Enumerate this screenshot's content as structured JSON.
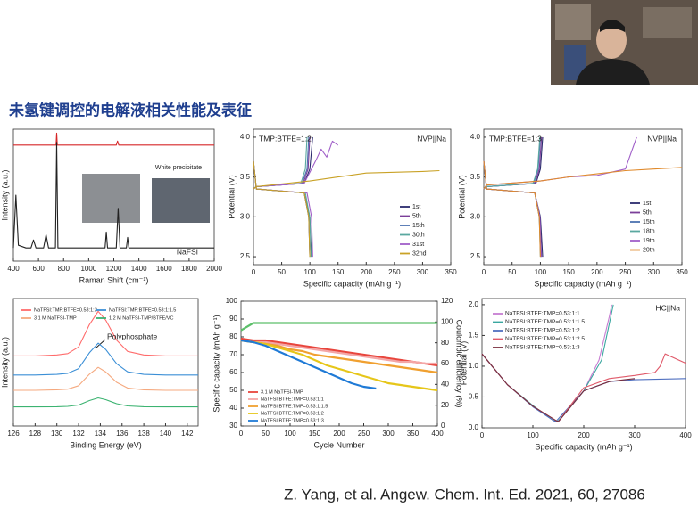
{
  "slide": {
    "title": "未氢键调控的电解液相关性能及表征",
    "citation": "Z. Yang, et al. Angew. Chem. Int. Ed. 2021, 60, 27086"
  },
  "chart_data": [
    {
      "type": "line",
      "xlabel": "Raman Shift (cm⁻¹)",
      "ylabel": "Intensity (a.u.)",
      "xlim": [
        400,
        2000
      ],
      "xticks": [
        400,
        600,
        800,
        1000,
        1200,
        1400,
        1600,
        1800,
        2000
      ],
      "ylim": [
        0,
        100
      ],
      "annotations": [
        "White precipitate",
        "NaFSI"
      ],
      "series": [
        {
          "color": "#d62728",
          "x": [
            400,
            700,
            740,
            745,
            750,
            800,
            1100,
            1220,
            1230,
            1240,
            1400,
            2000
          ],
          "values": [
            88,
            88,
            88,
            97,
            88,
            88,
            88,
            88,
            91,
            88,
            88,
            88
          ]
        },
        {
          "color": "#222222",
          "x": [
            400,
            420,
            440,
            500,
            540,
            560,
            580,
            640,
            660,
            680,
            720,
            735,
            745,
            755,
            800,
            1100,
            1130,
            1140,
            1150,
            1200,
            1220,
            1235,
            1250,
            1280,
            1300,
            1310,
            1320,
            1400,
            2000
          ],
          "values": [
            10,
            50,
            12,
            10,
            10,
            16,
            10,
            10,
            20,
            10,
            10,
            10,
            90,
            10,
            10,
            10,
            10,
            22,
            10,
            10,
            10,
            40,
            10,
            10,
            10,
            18,
            10,
            10,
            10
          ]
        }
      ]
    },
    {
      "type": "line",
      "xlabel": "Specific capacity (mAh g⁻¹)",
      "ylabel": "Potential (V)",
      "xlim": [
        0,
        350
      ],
      "xticks": [
        0,
        50,
        100,
        150,
        200,
        250,
        300,
        350
      ],
      "ylim": [
        2.4,
        4.1
      ],
      "yticks": [
        2.5,
        {
          "value": 3,
          "label": "3.0"
        },
        3.5,
        {
          "value": 4,
          "label": "4.0"
        }
      ],
      "annotations": [
        "TMP:BTFE=1:2",
        "NVP||Na"
      ],
      "series": [
        {
          "name": "1st",
          "color": "#2b2b6e",
          "x": [
            0,
            5,
            90,
            100,
            105,
            null,
            0,
            5,
            90,
            100,
            103
          ],
          "values": [
            3.35,
            3.38,
            3.42,
            3.6,
            4.0,
            null,
            3.7,
            3.35,
            3.3,
            3.0,
            2.5
          ]
        },
        {
          "name": "5th",
          "color": "#7b3f99",
          "x": [
            0,
            5,
            88,
            97,
            100,
            null,
            0,
            5,
            90,
            98,
            100
          ],
          "values": [
            3.35,
            3.38,
            3.42,
            3.6,
            4.0,
            null,
            3.7,
            3.35,
            3.3,
            3.0,
            2.5
          ]
        },
        {
          "name": "15th",
          "color": "#4c72b0",
          "x": [
            0,
            5,
            86,
            95,
            98,
            null,
            0,
            5,
            90,
            98,
            100
          ],
          "values": [
            3.35,
            3.38,
            3.42,
            3.6,
            4.0,
            null,
            3.7,
            3.35,
            3.3,
            3.0,
            2.5
          ]
        },
        {
          "name": "30th",
          "color": "#5aa8a0",
          "x": [
            0,
            5,
            84,
            92,
            95,
            null,
            0,
            5,
            92,
            100,
            102
          ],
          "values": [
            3.35,
            3.38,
            3.42,
            3.6,
            4.0,
            null,
            3.7,
            3.35,
            3.3,
            3.0,
            2.5
          ]
        },
        {
          "name": "31st",
          "color": "#a05fc8",
          "x": [
            0,
            5,
            90,
            110,
            120,
            130,
            140,
            150,
            null,
            0,
            5,
            95,
            103,
            105
          ],
          "values": [
            3.35,
            3.38,
            3.42,
            3.7,
            3.85,
            3.75,
            3.95,
            3.9,
            null,
            3.7,
            3.35,
            3.3,
            3.0,
            2.5
          ]
        },
        {
          "name": "32nd",
          "color": "#c9a227",
          "x": [
            0,
            5,
            100,
            150,
            200,
            250,
            300,
            330,
            null,
            0,
            5,
            90,
            98,
            100
          ],
          "values": [
            3.35,
            3.38,
            3.45,
            3.5,
            3.55,
            3.56,
            3.57,
            3.58,
            null,
            3.7,
            3.35,
            3.3,
            3.0,
            2.5
          ]
        }
      ]
    },
    {
      "type": "line",
      "xlabel": "Specific capacity (mAh g⁻¹)",
      "ylabel": "Potential (V)",
      "xlim": [
        0,
        350
      ],
      "xticks": [
        0,
        50,
        100,
        150,
        200,
        250,
        300,
        350
      ],
      "ylim": [
        2.4,
        4.1
      ],
      "yticks": [
        2.5,
        {
          "value": 3,
          "label": "3.0"
        },
        3.5,
        {
          "value": 4,
          "label": "4.0"
        }
      ],
      "annotations": [
        "TMP:BTFE=1:3",
        "NVP||Na"
      ],
      "series": [
        {
          "name": "1st",
          "color": "#2b2b6e",
          "x": [
            0,
            5,
            92,
            100,
            104,
            null,
            0,
            5,
            90,
            100,
            104
          ],
          "values": [
            3.35,
            3.38,
            3.42,
            3.6,
            4.0,
            null,
            3.7,
            3.35,
            3.3,
            3.0,
            2.5
          ]
        },
        {
          "name": "5th",
          "color": "#7b3f99",
          "x": [
            0,
            5,
            90,
            98,
            102,
            null,
            0,
            5,
            90,
            99,
            102
          ],
          "values": [
            3.35,
            3.38,
            3.42,
            3.6,
            4.0,
            null,
            3.7,
            3.35,
            3.3,
            3.0,
            2.5
          ]
        },
        {
          "name": "15th",
          "color": "#4c72b0",
          "x": [
            0,
            5,
            88,
            96,
            100,
            null,
            0,
            5,
            90,
            98,
            101
          ],
          "values": [
            3.35,
            3.38,
            3.42,
            3.6,
            4.0,
            null,
            3.7,
            3.35,
            3.3,
            3.0,
            2.5
          ]
        },
        {
          "name": "18th",
          "color": "#5aa8a0",
          "x": [
            0,
            5,
            87,
            95,
            99,
            null,
            0,
            5,
            90,
            98,
            100
          ],
          "values": [
            3.35,
            3.38,
            3.42,
            3.6,
            4.0,
            null,
            3.7,
            3.35,
            3.3,
            3.0,
            2.5
          ]
        },
        {
          "name": "19th",
          "color": "#a05fc8",
          "x": [
            0,
            5,
            100,
            150,
            200,
            250,
            260,
            270,
            null,
            0,
            5,
            90,
            99,
            101
          ],
          "values": [
            3.35,
            3.4,
            3.45,
            3.5,
            3.52,
            3.6,
            3.8,
            4.0,
            null,
            3.7,
            3.35,
            3.3,
            3.0,
            2.5
          ]
        },
        {
          "name": "20th",
          "color": "#e08a2c",
          "x": [
            0,
            5,
            100,
            150,
            200,
            250,
            300,
            350,
            null,
            0,
            5,
            90,
            98,
            100
          ],
          "values": [
            3.35,
            3.4,
            3.45,
            3.5,
            3.54,
            3.58,
            3.6,
            3.62,
            null,
            3.7,
            3.35,
            3.3,
            3.0,
            2.5
          ]
        }
      ]
    },
    {
      "type": "line",
      "xlabel": "Binding Energy (eV)",
      "ylabel": "Intensity (a.u.)",
      "xlim": [
        126,
        143
      ],
      "xticks": [
        126,
        128,
        130,
        132,
        134,
        136,
        138,
        140,
        142
      ],
      "ylim": [
        0,
        100
      ],
      "annotations": [
        "Polyphosphate"
      ],
      "x": [
        126,
        128,
        130,
        131,
        132,
        133,
        133.8,
        134.5,
        135.5,
        136.5,
        138,
        140,
        143
      ],
      "series": [
        {
          "name": "NaTFSI:TMP:BTFE=0.53:1:3",
          "color": "#ff6b6b",
          "values": [
            55,
            55,
            55.7,
            56.8,
            62,
            79.5,
            90,
            83,
            67.3,
            58.5,
            55.7,
            55,
            55
          ]
        },
        {
          "name": "NaTFSI:TMP:BTFE=0.53:1:1.5",
          "color": "#3b8fd6",
          "values": [
            40,
            40,
            40.5,
            41.3,
            45,
            57.5,
            65,
            60,
            48.8,
            42.5,
            40.5,
            40,
            40
          ]
        },
        {
          "name": "3.1 M NaTFSI-TMP",
          "color": "#f5a97f",
          "values": [
            28,
            28,
            28.4,
            28.9,
            31.6,
            40.6,
            46,
            42.4,
            34.3,
            29.8,
            28.4,
            28,
            28
          ]
        },
        {
          "name": "1.2 M NaTFSI-TMP/BTFE/VC",
          "color": "#3cb371",
          "values": [
            15,
            15,
            15.1,
            15.4,
            16.4,
            19.9,
            22,
            20.6,
            17.5,
            15.7,
            15.1,
            15,
            15
          ]
        }
      ]
    },
    {
      "type": "line",
      "xlabel": "Cycle Number",
      "ylabel": "Specific capacity (mAh g⁻¹)",
      "y2label": "Coulombic efficiency (%)",
      "xlim": [
        0,
        400
      ],
      "xticks": [
        0,
        50,
        100,
        150,
        200,
        250,
        300,
        350,
        400
      ],
      "ylim": [
        30,
        100
      ],
      "yticks": [
        30,
        40,
        50,
        60,
        70,
        80,
        90,
        100
      ],
      "y2lim": [
        0,
        120
      ],
      "y2ticks": [
        0,
        20,
        40,
        60,
        80,
        100,
        120
      ],
      "x": [
        0,
        25,
        50,
        75,
        100,
        125,
        150,
        175,
        200,
        225,
        250,
        275,
        300,
        325,
        350,
        375,
        400
      ],
      "series": [
        {
          "name": "3.1 M NaTFSI-TMP",
          "color": "#e8453c",
          "values": [
            79,
            78,
            78,
            77,
            76,
            75,
            74,
            73,
            72,
            71,
            70,
            69,
            68,
            67,
            66,
            65,
            64
          ]
        },
        {
          "name": "NaTFSI:BTFE:TMP=0.53:1:1",
          "color": "#f4a6a6",
          "values": [
            78,
            77,
            77,
            76,
            75,
            74,
            73,
            72,
            71,
            70,
            69,
            68,
            67,
            66,
            66,
            65,
            65
          ]
        },
        {
          "name": "NaTFSI:BTFE:TMP=0.53:1:1.5",
          "color": "#f0a030",
          "values": [
            78,
            77,
            76,
            75,
            73,
            72,
            70,
            69,
            68,
            67,
            66,
            65,
            64,
            63,
            62,
            61,
            60
          ]
        },
        {
          "name": "NaTFSI:BTFE:TMP=0.53:1:2",
          "color": "#e6c619",
          "values": [
            78,
            77,
            76,
            74,
            72,
            70,
            67,
            64,
            62,
            60,
            58,
            56,
            54,
            53,
            52,
            51,
            50
          ]
        },
        {
          "name": "NaTFSI:BTFE:TMP=0.53:1:3",
          "color": "#1f7ad6",
          "values": [
            78,
            77,
            75,
            72,
            69,
            66,
            63,
            60,
            57,
            54,
            52,
            51,
            null,
            null,
            null,
            null,
            null
          ]
        },
        {
          "color": "#5cbf6a",
          "axis": "y2",
          "values": [
            92,
            99,
            99,
            99,
            99,
            99,
            99,
            99,
            99,
            99,
            99,
            99,
            99,
            99,
            99,
            99,
            99
          ]
        }
      ]
    },
    {
      "type": "line",
      "xlabel": "Specific capacity (mAh g⁻¹)",
      "ylabel": "Potential (V)",
      "xlim": [
        0,
        400
      ],
      "xticks": [
        0,
        100,
        200,
        300,
        400
      ],
      "ylim": [
        0,
        2.1
      ],
      "yticks": [
        {
          "value": 0,
          "label": "0.0"
        },
        0.5,
        {
          "value": 1,
          "label": "1.0"
        },
        1.5,
        {
          "value": 2,
          "label": "2.0"
        }
      ],
      "annotations": [
        "HC||Na"
      ],
      "series": [
        {
          "name": "NaTFSI:BTFE:TMP=0.53:1:1",
          "color": "#c77dd1",
          "x": [
            0,
            20,
            50,
            100,
            140,
            150,
            null,
            150,
            160,
            200,
            230,
            250,
            255
          ],
          "values": [
            1.2,
            1.0,
            0.7,
            0.35,
            0.12,
            0.1,
            null,
            0.1,
            0.2,
            0.6,
            1.1,
            1.8,
            2.0
          ]
        },
        {
          "name": "NaTFSI:BTFE:TMP=0.53:1:1.5",
          "color": "#3aa7a0",
          "x": [
            0,
            20,
            50,
            100,
            140,
            148,
            null,
            148,
            160,
            200,
            235,
            253,
            258
          ],
          "values": [
            1.2,
            1.0,
            0.7,
            0.36,
            0.12,
            0.1,
            null,
            0.1,
            0.2,
            0.6,
            1.1,
            1.8,
            2.0
          ]
        },
        {
          "name": "NaTFSI:BTFE:TMP=0.53:1:2",
          "color": "#5070c0",
          "x": [
            0,
            20,
            50,
            100,
            140,
            145,
            null,
            145,
            200,
            250,
            300,
            400
          ],
          "values": [
            1.2,
            1.0,
            0.7,
            0.34,
            0.12,
            0.1,
            null,
            0.1,
            0.6,
            0.75,
            0.78,
            0.8
          ]
        },
        {
          "name": "NaTFSI:BTFE:TMP=0.53:1:2.5",
          "color": "#e05a6a",
          "x": [
            0,
            20,
            50,
            100,
            145,
            150,
            null,
            150,
            200,
            250,
            300,
            340,
            350,
            360,
            400
          ],
          "values": [
            1.2,
            1.0,
            0.7,
            0.35,
            0.12,
            0.1,
            null,
            0.1,
            0.65,
            0.8,
            0.85,
            0.9,
            1.0,
            1.2,
            1.05
          ]
        },
        {
          "name": "NaTFSI:BTFE:TMP=0.53:1:3",
          "color": "#7a2f3f",
          "x": [
            0,
            20,
            50,
            100,
            145,
            150,
            null,
            150,
            200,
            250,
            280,
            300
          ],
          "values": [
            1.2,
            1.0,
            0.7,
            0.35,
            0.12,
            0.1,
            null,
            0.1,
            0.6,
            0.75,
            0.78,
            0.8
          ]
        }
      ]
    }
  ]
}
